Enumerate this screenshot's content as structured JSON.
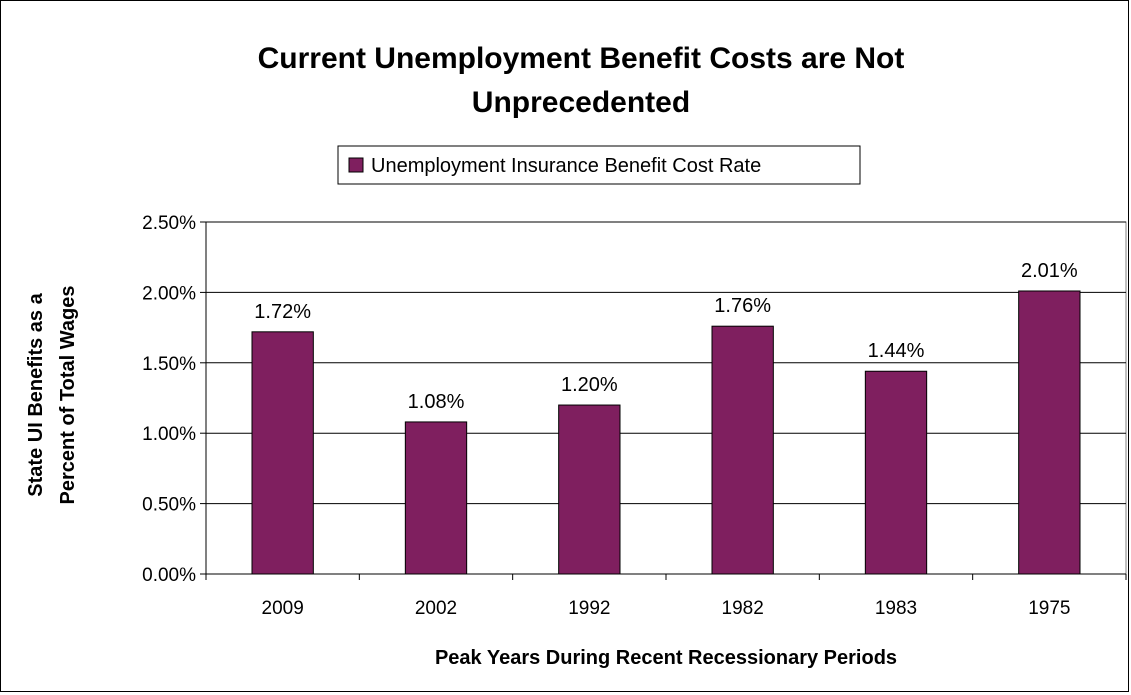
{
  "chart_data": {
    "type": "bar",
    "title_lines": [
      "Current Unemployment Benefit Costs are Not",
      "Unprecedented"
    ],
    "categories": [
      "2009",
      "2002",
      "1992",
      "1982",
      "1983",
      "1975"
    ],
    "series": [
      {
        "name": "Unemployment Insurance Benefit Cost Rate",
        "values": [
          1.72,
          1.08,
          1.2,
          1.76,
          1.44,
          2.01
        ],
        "labels": [
          "1.72%",
          "1.08%",
          "1.20%",
          "1.76%",
          "1.44%",
          "2.01%"
        ],
        "color": "#7f1f5f"
      }
    ],
    "xlabel": "Peak Years During Recent Recessionary Periods",
    "ylabel_lines": [
      "State UI Benefits as a",
      "Percent of Total Wages"
    ],
    "ylim": [
      0,
      2.5
    ],
    "yticks": [
      "0.00%",
      "0.50%",
      "1.00%",
      "1.50%",
      "2.00%",
      "2.50%"
    ],
    "grid": true,
    "legend_position": "top"
  }
}
